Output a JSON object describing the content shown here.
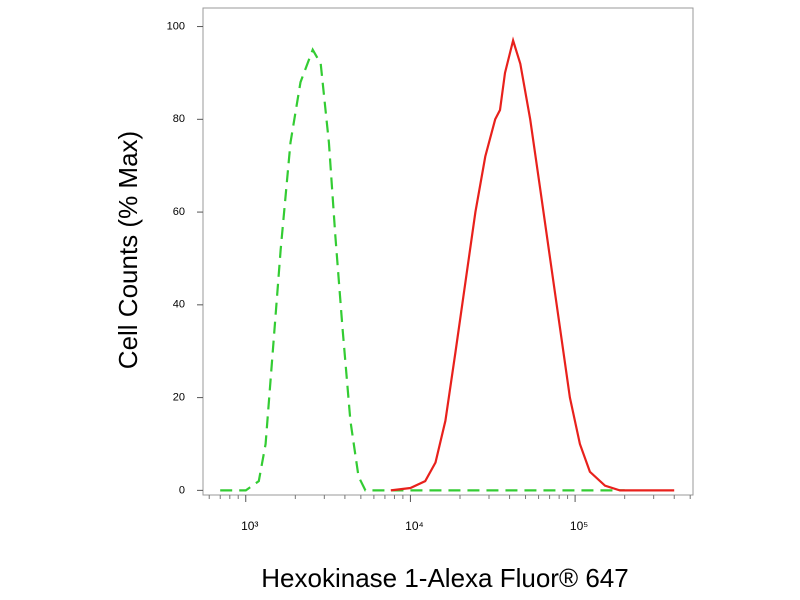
{
  "chart_data": {
    "type": "line",
    "xlabel": "Hexokinase 1-Alexa Fluor® 647",
    "ylabel": "Cell Counts (% Max)",
    "xscale": "log",
    "xlim": [
      550,
      520000
    ],
    "ylim": [
      -1,
      104
    ],
    "xticks": [
      {
        "value": 1000,
        "label": "10³"
      },
      {
        "value": 10000,
        "label": "10⁴"
      },
      {
        "value": 100000,
        "label": "10⁵"
      }
    ],
    "xminorticks": [
      600,
      700,
      800,
      900,
      2000,
      3000,
      4000,
      5000,
      6000,
      7000,
      8000,
      9000,
      20000,
      30000,
      40000,
      50000,
      60000,
      70000,
      80000,
      90000,
      200000,
      300000,
      400000,
      500000
    ],
    "yticks": [
      0,
      20,
      40,
      60,
      80,
      100
    ],
    "series": [
      {
        "color": "#33cc33",
        "dashed": true,
        "x": [
          700,
          1000,
          1200,
          1320,
          1460,
          1630,
          1870,
          2150,
          2550,
          2850,
          3200,
          3500,
          3870,
          4320,
          4840,
          5330,
          200000
        ],
        "values": [
          0,
          0,
          2,
          10,
          30,
          52,
          75,
          88,
          95,
          92,
          75,
          55,
          35,
          15,
          3,
          0,
          0
        ]
      },
      {
        "color": "#e8211c",
        "dashed": false,
        "x": [
          7600,
          10000,
          12300,
          14200,
          16300,
          18800,
          21600,
          24800,
          28500,
          32700,
          35000,
          37500,
          42000,
          46500,
          53400,
          61400,
          70500,
          81000,
          93000,
          107000,
          123000,
          152000,
          187000,
          400000
        ],
        "values": [
          0,
          0.5,
          2,
          6,
          15,
          30,
          45,
          60,
          72,
          80,
          82,
          90,
          97,
          92,
          80,
          65,
          50,
          35,
          20,
          10,
          4,
          1,
          0,
          0
        ]
      }
    ]
  }
}
